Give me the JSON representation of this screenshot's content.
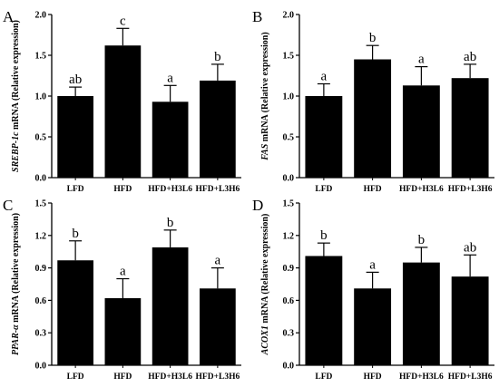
{
  "chart_data": [
    {
      "panel": "A",
      "type": "bar",
      "categories": [
        "LFD",
        "HFD",
        "HFD+H3L6",
        "HFD+L3H6"
      ],
      "values": [
        1.0,
        1.62,
        0.93,
        1.19
      ],
      "errors": [
        0.11,
        0.21,
        0.2,
        0.2
      ],
      "significance": [
        "ab",
        "c",
        "a",
        "b"
      ],
      "ylabel_gene": "SREBP-1c",
      "ylabel_rest": " mRNA (Relative expression)",
      "ylim": [
        0,
        2.0
      ],
      "yticks": [
        "0.0",
        "0.5",
        "1.0",
        "1.5",
        "2.0"
      ]
    },
    {
      "panel": "B",
      "type": "bar",
      "categories": [
        "LFD",
        "HFD",
        "HFD+H3L6",
        "HFD+L3H6"
      ],
      "values": [
        1.0,
        1.45,
        1.13,
        1.22
      ],
      "errors": [
        0.15,
        0.17,
        0.23,
        0.17
      ],
      "significance": [
        "a",
        "b",
        "a",
        "ab"
      ],
      "ylabel_gene": "FAS",
      "ylabel_rest": " mRNA (Relative expression)",
      "ylim": [
        0,
        2.0
      ],
      "yticks": [
        "0.0",
        "0.5",
        "1.0",
        "1.5",
        "2.0"
      ]
    },
    {
      "panel": "C",
      "type": "bar",
      "categories": [
        "LFD",
        "HFD",
        "HFD+H3L6",
        "HFD+L3H6"
      ],
      "values": [
        0.97,
        0.62,
        1.09,
        0.71
      ],
      "errors": [
        0.18,
        0.18,
        0.16,
        0.19
      ],
      "significance": [
        "b",
        "a",
        "b",
        "a"
      ],
      "ylabel_gene": "PPAR-α",
      "ylabel_rest": " mRNA (Relative expression)",
      "ylim": [
        0,
        1.5
      ],
      "yticks": [
        "0.0",
        "0.3",
        "0.6",
        "0.9",
        "1.2",
        "1.5"
      ]
    },
    {
      "panel": "D",
      "type": "bar",
      "categories": [
        "LFD",
        "HFD",
        "HFD+H3L6",
        "HFD+L3H6"
      ],
      "values": [
        1.01,
        0.71,
        0.95,
        0.82
      ],
      "errors": [
        0.12,
        0.15,
        0.14,
        0.2
      ],
      "significance": [
        "b",
        "a",
        "b",
        "ab"
      ],
      "ylabel_gene": "ACOX1",
      "ylabel_rest": " mRNA (Relative expression)",
      "ylim": [
        0,
        1.5
      ],
      "yticks": [
        "0.0",
        "0.3",
        "0.6",
        "0.9",
        "1.2",
        "1.5"
      ]
    }
  ],
  "colors": {
    "bar": "#000000",
    "axis": "#000000"
  }
}
